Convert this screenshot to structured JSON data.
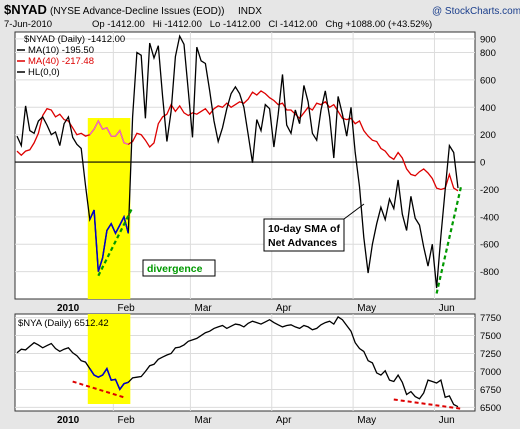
{
  "header": {
    "title": "$NYAD",
    "subtitle": "(NYSE Advance-Decline Issues (EOD))",
    "exchange": "INDX",
    "watermark": "@ StockCharts.com",
    "date": "7-Jun-2010",
    "quote": "Op -1412.00   Hi -1412.00   Lo -1412.00   Cl -1412.00   Chg +1088.00 (+43.52%)"
  },
  "colors": {
    "background": "#e6e6e6",
    "panel": "#ffffff",
    "grid": "#d9d9d9",
    "nyad": "#000000",
    "ma10": "#000000",
    "ma40": "#dd0000",
    "highlight": "#ffff00",
    "divergence_line": "#009900",
    "nya_blue": "#0000cc",
    "red_dash": "#dd0000"
  },
  "chart_data": [
    {
      "type": "line",
      "legend": [
        {
          "label": "$NYAD (Daily) -1412.00",
          "color": "#000000"
        },
        {
          "label": "MA(10) -195.50",
          "color": "#000000"
        },
        {
          "label": "MA(40) -217.48",
          "color": "#dd0000"
        },
        {
          "label": "HL(0,0)",
          "color": "#000000"
        }
      ],
      "x_labels": [
        {
          "label": "2010",
          "bold": true
        },
        {
          "label": "Feb"
        },
        {
          "label": "Mar"
        },
        {
          "label": "Apr"
        },
        {
          "label": "May"
        },
        {
          "label": "Jun"
        }
      ],
      "ylim": [
        -1000,
        950
      ],
      "yticks": [
        "900",
        "800",
        "600",
        "400",
        "200",
        "0",
        "-200",
        "-400",
        "-600",
        "-800"
      ],
      "ytick_values": [
        900,
        800,
        600,
        400,
        200,
        0,
        -200,
        -400,
        -600,
        -800
      ],
      "zero_line": 0,
      "series": [
        {
          "name": "MA(10)",
          "values": [
            190,
            120,
            410,
            230,
            210,
            300,
            330,
            270,
            200,
            220,
            120,
            280,
            330,
            180,
            130,
            100,
            -170,
            -420,
            -350,
            -800,
            -700,
            -500,
            -450,
            -520,
            -460,
            -400,
            -520,
            330,
            800,
            780,
            320,
            870,
            760,
            850,
            480,
            150,
            370,
            770,
            920,
            860,
            520,
            180,
            840,
            740,
            720,
            520,
            300,
            150,
            250,
            390,
            500,
            550,
            500,
            400,
            200,
            -5,
            310,
            230,
            420,
            390,
            110,
            350,
            640,
            270,
            210,
            380,
            280,
            560,
            440,
            210,
            160,
            380,
            520,
            330,
            30,
            480,
            350,
            190,
            400,
            70,
            -180,
            -550,
            -810,
            -600,
            -450,
            -330,
            -420,
            -270,
            -340,
            -130,
            -380,
            -500,
            -250,
            -410,
            -460,
            -620,
            -760,
            -600,
            -920,
            -540,
            -200,
            120,
            70,
            -190
          ],
          "blue_segment_index_range": [
            17,
            26
          ]
        },
        {
          "name": "MA(40)",
          "values": [
            80,
            50,
            80,
            90,
            140,
            210,
            340,
            390,
            380,
            330,
            350,
            310,
            300,
            250,
            200,
            210,
            190,
            200,
            240,
            300,
            240,
            250,
            190,
            190,
            230,
            140,
            130,
            150,
            210,
            200,
            160,
            110,
            140,
            280,
            330,
            350,
            420,
            370,
            410,
            360,
            340,
            360,
            350,
            370,
            390,
            350,
            390,
            410,
            400,
            430,
            400,
            420,
            440,
            430,
            460,
            510,
            490,
            520,
            500,
            470,
            450,
            420,
            430,
            380,
            380,
            350,
            320,
            360,
            400,
            380,
            430,
            420,
            440,
            400,
            420,
            370,
            320,
            310,
            320,
            280,
            300,
            230,
            190,
            160,
            150,
            100,
            80,
            40,
            20,
            70,
            30,
            -50,
            -90,
            -100,
            -70,
            -50,
            -80,
            -120,
            -190,
            -200,
            -190,
            -90,
            -190,
            -210
          ],
          "pink_segment_index_range": [
            17,
            26
          ]
        }
      ],
      "annotations": [
        {
          "text": "10-day SMA of",
          "line": 1
        },
        {
          "text": "Net Advances",
          "line": 2
        },
        {
          "text": "divergence"
        }
      ],
      "highlight_range": [
        "Jan 28",
        "Feb 16"
      ]
    },
    {
      "type": "line",
      "legend": [
        {
          "label": "$NYA (Daily) 6512.42",
          "color": "#000000"
        }
      ],
      "x_labels": [
        {
          "label": "2010",
          "bold": true
        },
        {
          "label": "Feb"
        },
        {
          "label": "Mar"
        },
        {
          "label": "Apr"
        },
        {
          "label": "May"
        },
        {
          "label": "Jun"
        }
      ],
      "ylim": [
        6450,
        7800
      ],
      "yticks": [
        "7750",
        "7500",
        "7250",
        "7000",
        "6750",
        "6500"
      ],
      "ytick_values": [
        7750,
        7500,
        7250,
        7000,
        6750,
        6500
      ],
      "series": [
        {
          "name": "$NYA",
          "values": [
            7260,
            7310,
            7300,
            7350,
            7400,
            7370,
            7330,
            7360,
            7390,
            7320,
            7280,
            7310,
            7330,
            7260,
            7220,
            7150,
            7130,
            7040,
            6950,
            6920,
            6950,
            7040,
            6880,
            6890,
            6750,
            6830,
            6850,
            6910,
            6920,
            6930,
            7000,
            7080,
            7100,
            7170,
            7200,
            7230,
            7250,
            7330,
            7340,
            7370,
            7420,
            7440,
            7460,
            7500,
            7540,
            7560,
            7600,
            7620,
            7640,
            7600,
            7630,
            7660,
            7650,
            7620,
            7670,
            7700,
            7680,
            7660,
            7690,
            7720,
            7680,
            7650,
            7620,
            7640,
            7650,
            7620,
            7600,
            7640,
            7620,
            7580,
            7600,
            7650,
            7680,
            7700,
            7660,
            7760,
            7720,
            7640,
            7560,
            7400,
            7320,
            7280,
            7150,
            7120,
            6980,
            6950,
            7010,
            6880,
            6860,
            6950,
            6850,
            6680,
            6720,
            6650,
            6620,
            6700,
            6880,
            6860,
            6840,
            6880,
            6640,
            6660,
            6540,
            6510
          ],
          "blue_segment_index_range": [
            17,
            26
          ]
        }
      ],
      "highlight_range": [
        "Jan 28",
        "Feb 16"
      ]
    }
  ]
}
